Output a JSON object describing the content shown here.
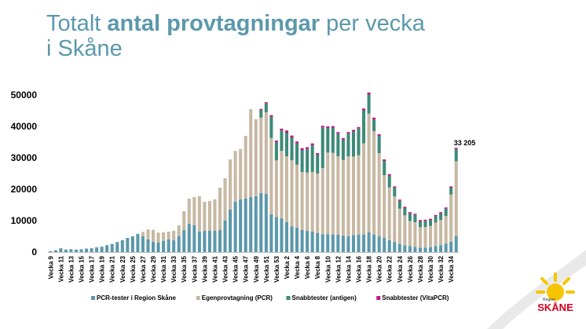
{
  "title": {
    "part1": "Totalt ",
    "bold": "antal provtagningar",
    "part2": " per vecka",
    "line2": "i Skåne"
  },
  "logo": {
    "small": "Region",
    "big": "SKÅNE"
  },
  "chart_data": {
    "type": "bar",
    "stacked": true,
    "title": "",
    "xlabel": "",
    "ylabel": "",
    "ylim": [
      0,
      50000
    ],
    "yticks": [
      0,
      10000,
      20000,
      30000,
      40000,
      50000
    ],
    "ytick_labels": [
      "0",
      "10000",
      "20000",
      "30000",
      "40000",
      "50000"
    ],
    "grid": false,
    "legend_position": "bottom",
    "categories": [
      "Vecka 9",
      "Vecka 10",
      "Vecka 11",
      "Vecka 12",
      "Vecka 13",
      "Vecka 14",
      "Vecka 15",
      "Vecka 16",
      "Vecka 17",
      "Vecka 18",
      "Vecka 19",
      "Vecka 20",
      "Vecka 21",
      "Vecka 22",
      "Vecka 23",
      "Vecka 24",
      "Vecka 25",
      "Vecka 26",
      "Vecka 27",
      "Vecka 28",
      "Vecka 29",
      "Vecka 30",
      "Vecka 31",
      "Vecka 32",
      "Vecka 33",
      "Vecka 34",
      "Vecka 35",
      "Vecka 36",
      "Vecka 37",
      "Vecka 38",
      "Vecka 39",
      "Vecka 40",
      "Vecka 41",
      "Vecka 42",
      "Vecka 43",
      "Vecka 44",
      "Vecka 45",
      "Vecka 46",
      "Vecka 47",
      "Vecka 48",
      "Vecka 49",
      "Vecka 50",
      "Vecka 51",
      "Vecka 52",
      "Vecka 53",
      "Vecka 1",
      "Vecka 2",
      "Vecka 3",
      "Vecka 4",
      "Vecka 5",
      "Vecka 6",
      "Vecka 7",
      "Vecka 8",
      "Vecka 9",
      "Vecka 10",
      "Vecka 11",
      "Vecka 12",
      "Vecka 13",
      "Vecka 14",
      "Vecka 15",
      "Vecka 16",
      "Vecka 17",
      "Vecka 18",
      "Vecka 19",
      "Vecka 20",
      "Vecka 21",
      "Vecka 22",
      "Vecka 23",
      "Vecka 24",
      "Vecka 25",
      "Vecka 26",
      "Vecka 27",
      "Vecka 28",
      "Vecka 29",
      "Vecka 30",
      "Vecka 31",
      "Vecka 32",
      "Vecka 33",
      "Vecka 34",
      "Vecka 35"
    ],
    "series": [
      {
        "name": "PCR-tester i Region Skåne",
        "color": "#5b98ab",
        "values": [
          300,
          600,
          1200,
          800,
          900,
          800,
          900,
          1100,
          1200,
          1500,
          1700,
          2200,
          2600,
          3200,
          3800,
          4500,
          5000,
          5800,
          5000,
          4000,
          3300,
          3000,
          3500,
          4000,
          3800,
          5000,
          7000,
          9000,
          8500,
          6500,
          6800,
          6800,
          6800,
          7000,
          10000,
          13500,
          16000,
          16800,
          17000,
          17500,
          17800,
          18800,
          18500,
          12000,
          11200,
          10800,
          9500,
          8200,
          7800,
          7000,
          6800,
          6500,
          6000,
          5700,
          5700,
          5600,
          5500,
          5300,
          5000,
          5400,
          5500,
          5600,
          6300,
          5500,
          5000,
          4500,
          3800,
          3200,
          2600,
          2200,
          1900,
          1700,
          1400,
          1400,
          1500,
          1900,
          2200,
          2700,
          3300,
          5100
        ]
      },
      {
        "name": "Egenprovtagning (PCR)",
        "color": "#c7b8a3",
        "values": [
          0,
          0,
          0,
          0,
          0,
          0,
          0,
          0,
          0,
          0,
          0,
          0,
          0,
          0,
          0,
          0,
          0,
          0,
          1400,
          3200,
          3800,
          3200,
          2800,
          2500,
          3000,
          3500,
          6000,
          8000,
          9000,
          11300,
          9200,
          9500,
          10000,
          13500,
          13500,
          16000,
          16200,
          16000,
          20000,
          28000,
          24500,
          24000,
          26000,
          24300,
          18000,
          21400,
          21000,
          21000,
          20000,
          18500,
          18500,
          19000,
          19000,
          21000,
          26000,
          26000,
          25000,
          24000,
          25500,
          25000,
          25300,
          29000,
          37800,
          33000,
          26500,
          20000,
          16800,
          14500,
          11200,
          9500,
          8000,
          7800,
          6500,
          6600,
          6800,
          7500,
          8000,
          8800,
          15000,
          23800
        ]
      },
      {
        "name": "Snabbtester (antigen)",
        "color": "#3e8a78",
        "values": [
          0,
          0,
          0,
          0,
          0,
          0,
          0,
          0,
          0,
          0,
          0,
          0,
          0,
          0,
          0,
          0,
          0,
          0,
          0,
          0,
          0,
          0,
          0,
          0,
          0,
          0,
          0,
          0,
          0,
          0,
          0,
          0,
          0,
          0,
          0,
          0,
          0,
          0,
          0,
          0,
          0,
          2500,
          2800,
          6800,
          5700,
          6500,
          7500,
          7200,
          6800,
          7000,
          7500,
          8500,
          6000,
          13000,
          7800,
          8000,
          7200,
          6500,
          7200,
          8000,
          8500,
          10500,
          6000,
          3700,
          5500,
          4500,
          3700,
          2800,
          2500,
          2300,
          2400,
          2300,
          1900,
          1900,
          1900,
          2000,
          2100,
          2300,
          2200,
          3900
        ]
      },
      {
        "name": "Snabbtester (VitaPCR)",
        "color": "#c0178a",
        "values": [
          0,
          0,
          0,
          0,
          0,
          0,
          0,
          0,
          0,
          0,
          0,
          0,
          0,
          0,
          0,
          0,
          0,
          0,
          0,
          0,
          0,
          0,
          0,
          0,
          0,
          0,
          0,
          0,
          0,
          0,
          0,
          0,
          0,
          0,
          0,
          0,
          0,
          0,
          0,
          0,
          0,
          300,
          400,
          500,
          600,
          600,
          700,
          700,
          600,
          600,
          600,
          600,
          500,
          500,
          500,
          500,
          500,
          500,
          500,
          500,
          500,
          600,
          700,
          600,
          500,
          500,
          500,
          400,
          400,
          400,
          400,
          400,
          400,
          400,
          400,
          400,
          400,
          400,
          400,
          400
        ]
      }
    ],
    "annotation": {
      "label": "33 205",
      "category_index": 79
    }
  }
}
